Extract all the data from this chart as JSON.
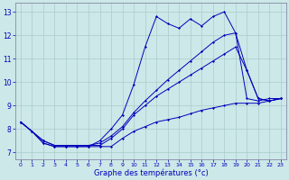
{
  "xlabel": "Graphe des températures (°c)",
  "background_color": "#cce8e8",
  "line_color": "#0000bb",
  "grid_color": "#aacccc",
  "x_ticks": [
    0,
    1,
    2,
    3,
    4,
    5,
    6,
    7,
    8,
    9,
    10,
    11,
    12,
    13,
    14,
    15,
    16,
    17,
    18,
    19,
    20,
    21,
    22,
    23
  ],
  "y_ticks": [
    7,
    8,
    9,
    10,
    11,
    12,
    13
  ],
  "ylim": [
    6.7,
    13.4
  ],
  "xlim": [
    -0.5,
    23.5
  ],
  "series": [
    {
      "x": [
        0,
        1,
        2,
        3,
        4,
        5,
        6,
        7,
        8,
        9,
        10,
        11,
        12,
        13,
        14,
        15,
        16,
        17,
        18,
        19,
        20,
        21,
        22,
        23
      ],
      "y": [
        8.3,
        7.9,
        7.4,
        7.25,
        7.25,
        7.25,
        7.25,
        7.25,
        7.25,
        7.6,
        7.9,
        8.1,
        8.3,
        8.4,
        8.5,
        8.65,
        8.8,
        8.9,
        9.0,
        9.1,
        9.1,
        9.1,
        9.2,
        9.3
      ]
    },
    {
      "x": [
        0,
        1,
        2,
        3,
        4,
        5,
        6,
        7,
        8,
        9,
        10,
        11,
        12,
        13,
        14,
        15,
        16,
        17,
        18,
        19,
        20,
        21,
        22,
        23
      ],
      "y": [
        8.3,
        7.9,
        7.4,
        7.25,
        7.25,
        7.25,
        7.25,
        7.5,
        8.0,
        8.6,
        9.9,
        11.5,
        12.8,
        12.5,
        12.3,
        12.7,
        12.4,
        12.8,
        13.0,
        12.1,
        9.3,
        9.2,
        9.3,
        9.3
      ]
    },
    {
      "x": [
        0,
        1,
        2,
        3,
        4,
        5,
        6,
        7,
        8,
        9,
        10,
        11,
        12,
        13,
        14,
        15,
        16,
        17,
        18,
        19,
        20,
        21,
        22,
        23
      ],
      "y": [
        8.3,
        7.9,
        7.5,
        7.3,
        7.3,
        7.3,
        7.3,
        7.3,
        7.6,
        8.0,
        8.6,
        9.0,
        9.4,
        9.7,
        10.0,
        10.3,
        10.6,
        10.9,
        11.2,
        11.5,
        10.5,
        9.3,
        9.2,
        9.3
      ]
    },
    {
      "x": [
        0,
        1,
        2,
        3,
        4,
        5,
        6,
        7,
        8,
        9,
        10,
        11,
        12,
        13,
        14,
        15,
        16,
        17,
        18,
        19,
        20,
        21,
        22,
        23
      ],
      "y": [
        8.3,
        7.9,
        7.5,
        7.3,
        7.3,
        7.3,
        7.3,
        7.4,
        7.7,
        8.1,
        8.7,
        9.2,
        9.65,
        10.1,
        10.5,
        10.9,
        11.3,
        11.7,
        12.0,
        12.1,
        10.5,
        9.3,
        9.2,
        9.3
      ]
    }
  ]
}
